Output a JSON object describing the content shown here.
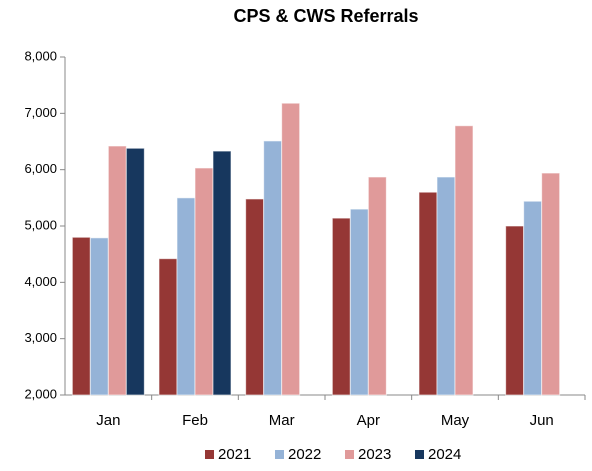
{
  "chart_data": {
    "type": "bar",
    "title": "CPS & CWS Referrals",
    "categories": [
      "Jan",
      "Feb",
      "Mar",
      "Apr",
      "May",
      "Jun"
    ],
    "series": [
      {
        "name": "2021",
        "color": "#953735",
        "values": [
          4800,
          4420,
          5480,
          5140,
          5600,
          5000
        ]
      },
      {
        "name": "2022",
        "color": "#95b3d7",
        "values": [
          4790,
          5500,
          6510,
          5300,
          5870,
          5440
        ]
      },
      {
        "name": "2023",
        "color": "#e09a9a",
        "values": [
          6420,
          6030,
          7180,
          5870,
          6780,
          5940
        ]
      },
      {
        "name": "2024",
        "color": "#17375e",
        "values": [
          6380,
          6330,
          null,
          null,
          null,
          null
        ]
      }
    ],
    "ylim": [
      2000,
      8000
    ],
    "yticks": [
      {
        "value": 2000,
        "label": "2,000"
      },
      {
        "value": 3000,
        "label": "3,000"
      },
      {
        "value": 4000,
        "label": "4,000"
      },
      {
        "value": 5000,
        "label": "5,000"
      },
      {
        "value": 6000,
        "label": "6,000"
      },
      {
        "value": 7000,
        "label": "7,000"
      },
      {
        "value": 8000,
        "label": "8,000"
      }
    ],
    "grid": false,
    "legend": "bottom"
  }
}
